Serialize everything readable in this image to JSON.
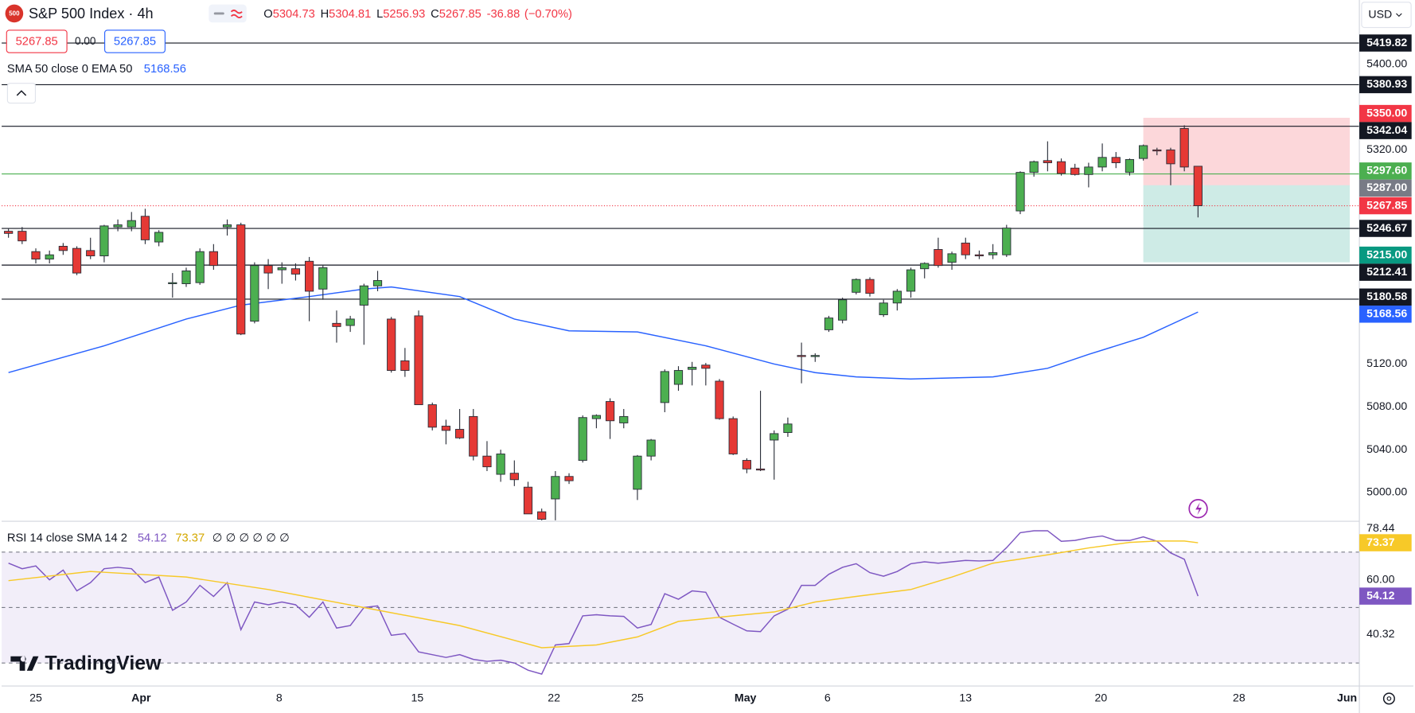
{
  "header": {
    "logo": "500",
    "symbol": "S&P 500 Index · 4h",
    "ohlc_labels": [
      "O",
      "H",
      "L",
      "C"
    ],
    "change": -36.88,
    "change_pct": "(−0.70%)",
    "sell": 5267.85,
    "spread": "0.00",
    "buy": 5267.85,
    "currency": "USD"
  },
  "indicators": {
    "ema_legend": "SMA 50 close 0 EMA 50",
    "rsi_legend": "RSI 14 close SMA 14 2",
    "rsi_empty": "∅ ∅ ∅ ∅ ∅ ∅"
  },
  "branding": "TradingView",
  "chart_data": [
    {
      "type": "candlestick",
      "up_color": "#4caf50",
      "down_color": "#e53935",
      "outline_color": "#2a2e39",
      "xlim": [
        -0.5,
        98.8
      ],
      "xticks": [
        {
          "value": 2,
          "label": "25"
        },
        {
          "value": 9.7,
          "label": "Apr"
        },
        {
          "value": 19.8,
          "label": "8"
        },
        {
          "value": 29.9,
          "label": "15"
        },
        {
          "value": 39.9,
          "label": "22"
        },
        {
          "value": 46,
          "label": "25"
        },
        {
          "value": 53.9,
          "label": "May"
        },
        {
          "value": 59.9,
          "label": "6"
        },
        {
          "value": 70,
          "label": "13"
        },
        {
          "value": 79.9,
          "label": "20"
        },
        {
          "value": 90,
          "label": "28"
        },
        {
          "value": 97.9,
          "label": "Jun"
        }
      ],
      "ylim": [
        4974,
        5460
      ],
      "yticks": [
        {
          "value": 5400,
          "label": "5400.00"
        },
        {
          "value": 5320,
          "label": "5320.00"
        },
        {
          "value": 5120,
          "label": "5120.00"
        },
        {
          "value": 5080,
          "label": "5080.00"
        },
        {
          "value": 5040,
          "label": "5040.00"
        },
        {
          "value": 5000,
          "label": "5000.00"
        }
      ],
      "candles": [
        [
          5244,
          5247,
          5238,
          5242
        ],
        [
          5244,
          5248,
          5232,
          5235
        ],
        [
          5225,
          5228,
          5214,
          5218
        ],
        [
          5218,
          5226,
          5214,
          5222
        ],
        [
          5230,
          5233,
          5222,
          5226
        ],
        [
          5228,
          5230,
          5203,
          5205
        ],
        [
          5226,
          5238,
          5218,
          5221
        ],
        [
          5221,
          5250,
          5215,
          5249
        ],
        [
          5248,
          5255,
          5244,
          5250
        ],
        [
          5248,
          5262,
          5244,
          5254
        ],
        [
          5258,
          5265,
          5232,
          5236
        ],
        [
          5234,
          5245,
          5230,
          5243
        ],
        [
          5195,
          5205,
          5182,
          5196
        ],
        [
          5195,
          5210,
          5192,
          5207
        ],
        [
          5196,
          5228,
          5194,
          5225
        ],
        [
          5225,
          5232,
          5208,
          5212
        ],
        [
          5248,
          5255,
          5240,
          5250
        ],
        [
          5250,
          5252,
          5147,
          5148
        ],
        [
          5160,
          5215,
          5158,
          5212
        ],
        [
          5212,
          5218,
          5190,
          5205
        ],
        [
          5208,
          5215,
          5195,
          5210
        ],
        [
          5209,
          5214,
          5198,
          5204
        ],
        [
          5216,
          5220,
          5160,
          5188
        ],
        [
          5190,
          5212,
          5180,
          5210
        ],
        [
          5158,
          5170,
          5140,
          5155
        ],
        [
          5156,
          5165,
          5150,
          5162
        ],
        [
          5175,
          5195,
          5138,
          5193
        ],
        [
          5193,
          5207,
          5188,
          5198
        ],
        [
          5162,
          5164,
          5112,
          5114
        ],
        [
          5123,
          5135,
          5108,
          5114
        ],
        [
          5165,
          5170,
          5082,
          5082
        ],
        [
          5082,
          5084,
          5058,
          5061
        ],
        [
          5062,
          5068,
          5045,
          5058
        ],
        [
          5059,
          5078,
          5050,
          5051
        ],
        [
          5071,
          5078,
          5030,
          5034
        ],
        [
          5034,
          5048,
          5020,
          5024
        ],
        [
          5017,
          5040,
          5010,
          5036
        ],
        [
          5018,
          5030,
          5006,
          5012
        ],
        [
          5005,
          5010,
          4980,
          4980
        ],
        [
          4982,
          4985,
          4970,
          4975
        ],
        [
          4994,
          5020,
          4970,
          5015
        ],
        [
          5015,
          5018,
          5008,
          5011
        ],
        [
          5030,
          5072,
          5028,
          5070
        ],
        [
          5069,
          5073,
          5060,
          5072
        ],
        [
          5085,
          5088,
          5050,
          5067
        ],
        [
          5065,
          5078,
          5060,
          5071
        ],
        [
          5003,
          5035,
          4993,
          5034
        ],
        [
          5034,
          5050,
          5030,
          5049
        ],
        [
          5084,
          5115,
          5075,
          5113
        ],
        [
          5101,
          5118,
          5095,
          5114
        ],
        [
          5115,
          5122,
          5100,
          5117
        ],
        [
          5119,
          5121,
          5100,
          5116
        ],
        [
          5104,
          5106,
          5068,
          5069
        ],
        [
          5069,
          5071,
          5035,
          5036
        ],
        [
          5030,
          5032,
          5018,
          5022
        ],
        [
          5022,
          5095,
          5020,
          5021
        ],
        [
          5049,
          5058,
          5012,
          5055
        ],
        [
          5056,
          5070,
          5052,
          5064
        ],
        [
          5128,
          5140,
          5102,
          5127
        ],
        [
          5127,
          5130,
          5122,
          5128
        ],
        [
          5152,
          5165,
          5150,
          5163
        ],
        [
          5161,
          5182,
          5158,
          5180
        ],
        [
          5187,
          5200,
          5185,
          5199
        ],
        [
          5199,
          5201,
          5183,
          5186
        ],
        [
          5166,
          5180,
          5164,
          5177
        ],
        [
          5177,
          5190,
          5170,
          5188
        ],
        [
          5188,
          5210,
          5182,
          5208
        ],
        [
          5209,
          5215,
          5200,
          5214
        ],
        [
          5227,
          5238,
          5210,
          5212
        ],
        [
          5215,
          5225,
          5208,
          5223
        ],
        [
          5233,
          5238,
          5218,
          5222
        ],
        [
          5222,
          5226,
          5218,
          5221
        ],
        [
          5222,
          5232,
          5218,
          5224
        ],
        [
          5222,
          5250,
          5220,
          5247
        ],
        [
          5263,
          5300,
          5260,
          5299
        ],
        [
          5299,
          5310,
          5295,
          5309
        ],
        [
          5310,
          5328,
          5300,
          5308
        ],
        [
          5309,
          5312,
          5296,
          5298
        ],
        [
          5303,
          5307,
          5296,
          5297
        ],
        [
          5297,
          5308,
          5285,
          5304
        ],
        [
          5304,
          5326,
          5300,
          5313
        ],
        [
          5313,
          5318,
          5303,
          5308
        ],
        [
          5299,
          5312,
          5296,
          5311
        ],
        [
          5312,
          5325,
          5310,
          5324
        ],
        [
          5320,
          5322,
          5315,
          5319
        ],
        [
          5320,
          5322,
          5287,
          5307
        ],
        [
          5340,
          5343,
          5300,
          5304
        ],
        [
          5304.73,
          5304.81,
          5256.93,
          5267.85
        ]
      ],
      "ema": {
        "color": "#2962ff",
        "x": [
          0,
          7,
          13,
          17,
          22,
          26,
          28,
          33,
          37,
          41,
          46,
          51,
          56,
          59,
          62,
          66,
          72,
          76,
          79,
          83,
          87
        ],
        "values": [
          5112,
          5137,
          5162,
          5175,
          5183,
          5190,
          5192,
          5183,
          5162,
          5151,
          5150,
          5137,
          5120,
          5112,
          5108,
          5106,
          5108,
          5116,
          5129,
          5145,
          5168.56
        ]
      },
      "levels": {
        "color": "#131722",
        "values": [
          5419.82,
          5380.93,
          5342.04,
          5246.67,
          5212.41,
          5180.58
        ]
      },
      "green_level": {
        "color": "#4caf50",
        "value": 5297.6,
        "label": "5297.60"
      },
      "last_price": {
        "color": "#f23645",
        "value": 5267.85
      },
      "position": {
        "xlim": [
          83,
          98.1
        ],
        "entry": {
          "value": 5287,
          "label": "5287.00",
          "color": "#787b86"
        },
        "stop": {
          "value": 5350,
          "label": "5350.00",
          "color": "#f23645"
        },
        "target": {
          "value": 5215,
          "label": "5215.00",
          "color": "#089981"
        }
      }
    },
    {
      "type": "line",
      "xlim": [
        -0.5,
        98.8
      ],
      "ylim": [
        21.7,
        80.8
      ],
      "yticks": [
        78.44,
        {
          "value": 60,
          "label": "60.00"
        },
        40.32
      ],
      "levels": [
        70,
        50,
        30
      ],
      "series": [
        {
          "color": "#7e57c2",
          "values": [
            66,
            64,
            65,
            60,
            63.5,
            56,
            59,
            64,
            64.5,
            64,
            59,
            61,
            49,
            52,
            58,
            54,
            59,
            42,
            52,
            51,
            52,
            51,
            46.5,
            52,
            42.6,
            43.5,
            50,
            50.6,
            40,
            40.6,
            34,
            33,
            32,
            33,
            31.3,
            30.6,
            31,
            30,
            27.4,
            26,
            36.5,
            37,
            47,
            47.4,
            47,
            46.8,
            42.6,
            43.9,
            55,
            53,
            56,
            55.5,
            46.5,
            44,
            41.6,
            41.3,
            47,
            49.4,
            58,
            58,
            62,
            64.5,
            65.8,
            62.6,
            61.3,
            63,
            65.8,
            66.5,
            66,
            66.5,
            67,
            66.8,
            67,
            71.6,
            77,
            77.7,
            77.7,
            73.9,
            74.2,
            75.2,
            75.8,
            74.2,
            74.2,
            75.5,
            73.9,
            69.7,
            67.4,
            54.12
          ]
        },
        {
          "color": "#f7c928",
          "x": [
            0,
            6,
            13,
            19,
            26,
            33,
            39,
            43,
            46,
            49,
            53,
            56,
            59,
            62,
            66,
            69,
            72,
            76,
            79,
            82,
            84,
            86,
            87
          ],
          "values": [
            59.7,
            63,
            61,
            56.5,
            50,
            43.5,
            35.5,
            36.5,
            39.4,
            45,
            47,
            48.4,
            52,
            54,
            56.5,
            61,
            66,
            69,
            71.5,
            73.5,
            74,
            74,
            73.37
          ]
        }
      ]
    }
  ]
}
